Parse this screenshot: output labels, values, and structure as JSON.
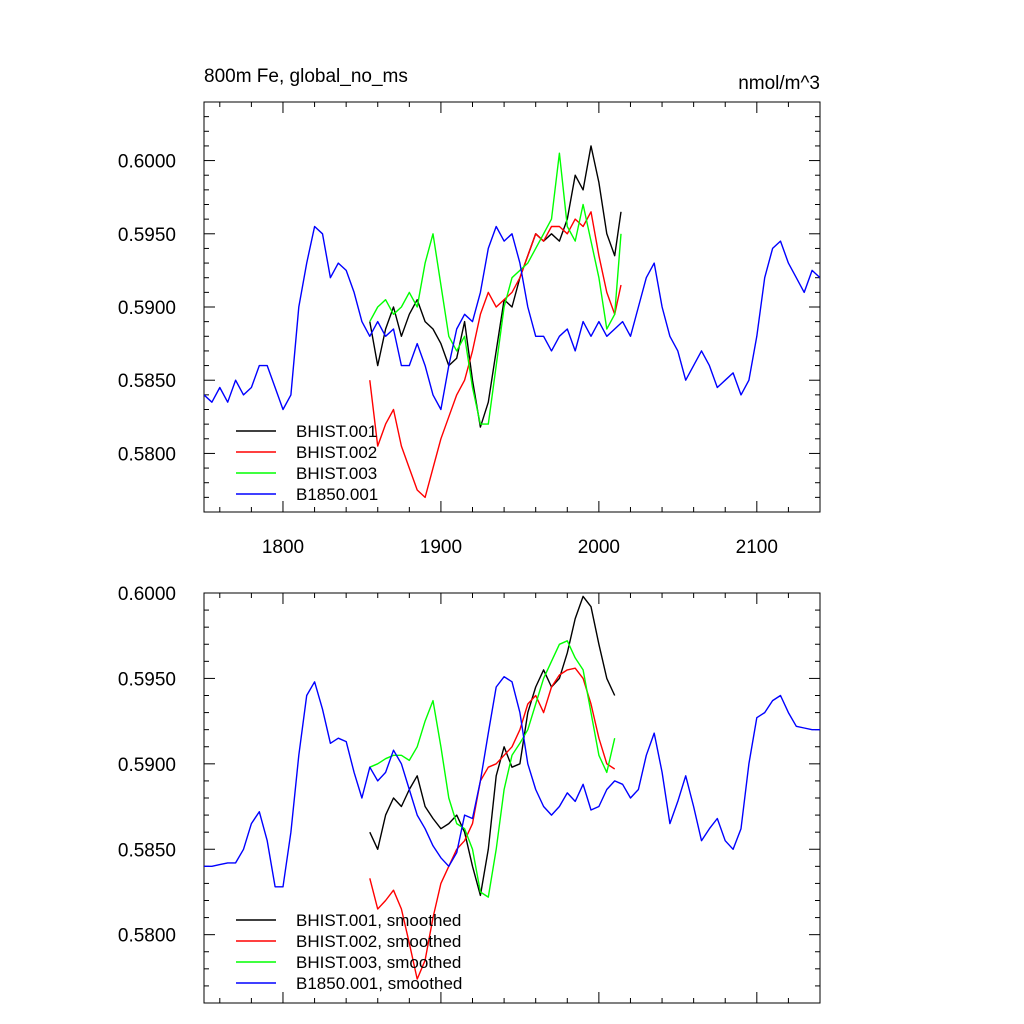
{
  "chart_data": [
    {
      "type": "line",
      "title": "800m Fe, global_no_ms",
      "units": "nmol/m^3",
      "xlim": [
        1750,
        2140
      ],
      "ylim": [
        0.576,
        0.604
      ],
      "x_ticks": [
        1800,
        1900,
        2000,
        2100
      ],
      "y_ticks": [
        0.58,
        0.585,
        0.59,
        0.595,
        0.6
      ],
      "y_tick_labels": [
        "0.5800",
        "0.5850",
        "0.5900",
        "0.5950",
        "0.6000"
      ],
      "x_tick_labels": [
        "1800",
        "1900",
        "2000",
        "2100"
      ],
      "legend_position": "bottom-left",
      "series": [
        {
          "name": "BHIST.001",
          "color": "#000000",
          "x": [
            1855,
            1860,
            1865,
            1870,
            1875,
            1880,
            1885,
            1890,
            1895,
            1900,
            1905,
            1910,
            1915,
            1920,
            1925,
            1930,
            1935,
            1940,
            1945,
            1950,
            1955,
            1960,
            1965,
            1970,
            1975,
            1980,
            1985,
            1990,
            1995,
            2000,
            2005,
            2010,
            2014
          ],
          "y": [
            0.589,
            0.586,
            0.5885,
            0.59,
            0.588,
            0.5895,
            0.5905,
            0.589,
            0.5885,
            0.5875,
            0.586,
            0.5865,
            0.589,
            0.585,
            0.5818,
            0.5835,
            0.587,
            0.5905,
            0.59,
            0.592,
            0.5935,
            0.595,
            0.5945,
            0.595,
            0.5945,
            0.596,
            0.599,
            0.598,
            0.601,
            0.5985,
            0.595,
            0.5935,
            0.5965
          ]
        },
        {
          "name": "BHIST.002",
          "color": "#ff0000",
          "x": [
            1855,
            1860,
            1865,
            1870,
            1875,
            1880,
            1885,
            1890,
            1895,
            1900,
            1905,
            1910,
            1915,
            1920,
            1925,
            1930,
            1935,
            1940,
            1945,
            1950,
            1955,
            1960,
            1965,
            1970,
            1975,
            1980,
            1985,
            1990,
            1995,
            2000,
            2005,
            2010,
            2014
          ],
          "y": [
            0.585,
            0.5805,
            0.582,
            0.583,
            0.5805,
            0.579,
            0.5775,
            0.577,
            0.579,
            0.581,
            0.5825,
            0.584,
            0.585,
            0.587,
            0.5895,
            0.591,
            0.59,
            0.5905,
            0.591,
            0.592,
            0.5935,
            0.595,
            0.5945,
            0.5955,
            0.5955,
            0.595,
            0.596,
            0.5955,
            0.5965,
            0.5935,
            0.591,
            0.5895,
            0.5915
          ]
        },
        {
          "name": "BHIST.003",
          "color": "#00ff00",
          "x": [
            1855,
            1860,
            1865,
            1870,
            1875,
            1880,
            1885,
            1890,
            1895,
            1900,
            1905,
            1910,
            1915,
            1920,
            1925,
            1930,
            1935,
            1940,
            1945,
            1950,
            1955,
            1960,
            1965,
            1970,
            1975,
            1980,
            1985,
            1990,
            1995,
            2000,
            2005,
            2010,
            2014
          ],
          "y": [
            0.589,
            0.59,
            0.5905,
            0.5895,
            0.59,
            0.591,
            0.59,
            0.593,
            0.595,
            0.5915,
            0.588,
            0.587,
            0.588,
            0.5845,
            0.582,
            0.582,
            0.586,
            0.59,
            0.592,
            0.5925,
            0.593,
            0.594,
            0.595,
            0.596,
            0.6005,
            0.5955,
            0.5945,
            0.597,
            0.5945,
            0.592,
            0.5885,
            0.5895,
            0.595
          ]
        },
        {
          "name": "B1850.001",
          "color": "#0000ff",
          "x": [
            1750,
            1755,
            1760,
            1765,
            1770,
            1775,
            1780,
            1785,
            1790,
            1795,
            1800,
            1805,
            1810,
            1815,
            1820,
            1825,
            1830,
            1835,
            1840,
            1845,
            1850,
            1855,
            1860,
            1865,
            1870,
            1875,
            1880,
            1885,
            1890,
            1895,
            1900,
            1905,
            1910,
            1915,
            1920,
            1925,
            1930,
            1935,
            1940,
            1945,
            1950,
            1955,
            1960,
            1965,
            1970,
            1975,
            1980,
            1985,
            1990,
            1995,
            2000,
            2005,
            2010,
            2015,
            2020,
            2025,
            2030,
            2035,
            2040,
            2045,
            2050,
            2055,
            2060,
            2065,
            2070,
            2075,
            2080,
            2085,
            2090,
            2095,
            2100,
            2105,
            2110,
            2115,
            2120,
            2125,
            2130,
            2135,
            2140
          ],
          "y": [
            0.584,
            0.5835,
            0.5845,
            0.5835,
            0.585,
            0.584,
            0.5845,
            0.586,
            0.586,
            0.5845,
            0.583,
            0.584,
            0.59,
            0.593,
            0.5955,
            0.595,
            0.592,
            0.593,
            0.5925,
            0.591,
            0.589,
            0.588,
            0.589,
            0.588,
            0.5885,
            0.586,
            0.586,
            0.5875,
            0.586,
            0.584,
            0.583,
            0.586,
            0.5885,
            0.5895,
            0.589,
            0.591,
            0.594,
            0.5955,
            0.5945,
            0.595,
            0.593,
            0.59,
            0.588,
            0.588,
            0.587,
            0.588,
            0.5885,
            0.587,
            0.589,
            0.588,
            0.589,
            0.588,
            0.5885,
            0.589,
            0.588,
            0.59,
            0.592,
            0.593,
            0.59,
            0.588,
            0.587,
            0.585,
            0.586,
            0.587,
            0.586,
            0.5845,
            0.585,
            0.5855,
            0.584,
            0.585,
            0.588,
            0.592,
            0.594,
            0.5945,
            0.593,
            0.592,
            0.591,
            0.5925,
            0.592
          ]
        }
      ]
    },
    {
      "type": "line",
      "xlim": [
        1750,
        2140
      ],
      "ylim": [
        0.576,
        0.6
      ],
      "x_ticks": [
        1800,
        1900,
        2000,
        2100
      ],
      "y_ticks": [
        0.58,
        0.585,
        0.59,
        0.595,
        0.6
      ],
      "y_tick_labels": [
        "0.5800",
        "0.5850",
        "0.5900",
        "0.5950",
        "0.6000"
      ],
      "legend_position": "bottom-left",
      "series": [
        {
          "name": "BHIST.001, smoothed",
          "color": "#000000",
          "x": [
            1855,
            1860,
            1865,
            1870,
            1875,
            1880,
            1885,
            1890,
            1895,
            1900,
            1905,
            1910,
            1915,
            1920,
            1925,
            1930,
            1935,
            1940,
            1945,
            1950,
            1955,
            1960,
            1965,
            1970,
            1975,
            1980,
            1985,
            1990,
            1995,
            2000,
            2005,
            2010
          ],
          "y": [
            0.586,
            0.585,
            0.587,
            0.588,
            0.5875,
            0.5885,
            0.5893,
            0.5875,
            0.5868,
            0.5862,
            0.5865,
            0.587,
            0.586,
            0.584,
            0.5823,
            0.585,
            0.5893,
            0.591,
            0.5898,
            0.59,
            0.593,
            0.5945,
            0.5955,
            0.5945,
            0.595,
            0.5965,
            0.5985,
            0.5998,
            0.5992,
            0.597,
            0.595,
            0.594
          ]
        },
        {
          "name": "BHIST.002, smoothed",
          "color": "#ff0000",
          "x": [
            1855,
            1860,
            1865,
            1870,
            1875,
            1880,
            1885,
            1890,
            1895,
            1900,
            1905,
            1910,
            1915,
            1920,
            1925,
            1930,
            1935,
            1940,
            1945,
            1950,
            1955,
            1960,
            1965,
            1970,
            1975,
            1980,
            1985,
            1990,
            1995,
            2000,
            2005,
            2010
          ],
          "y": [
            0.5833,
            0.5815,
            0.582,
            0.5826,
            0.5815,
            0.5795,
            0.5774,
            0.5785,
            0.581,
            0.583,
            0.584,
            0.585,
            0.5855,
            0.5865,
            0.589,
            0.5898,
            0.59,
            0.5905,
            0.591,
            0.592,
            0.5935,
            0.594,
            0.593,
            0.5945,
            0.5952,
            0.5955,
            0.5956,
            0.595,
            0.5935,
            0.5915,
            0.59,
            0.5897
          ]
        },
        {
          "name": "BHIST.003, smoothed",
          "color": "#00ff00",
          "x": [
            1855,
            1860,
            1865,
            1870,
            1875,
            1880,
            1885,
            1890,
            1895,
            1900,
            1905,
            1910,
            1915,
            1920,
            1925,
            1930,
            1935,
            1940,
            1945,
            1950,
            1955,
            1960,
            1965,
            1970,
            1975,
            1980,
            1985,
            1990,
            1995,
            2000,
            2005,
            2010
          ],
          "y": [
            0.5898,
            0.59,
            0.5903,
            0.5905,
            0.5905,
            0.5902,
            0.591,
            0.5925,
            0.5937,
            0.591,
            0.588,
            0.5865,
            0.5862,
            0.585,
            0.5825,
            0.5822,
            0.585,
            0.5885,
            0.5905,
            0.5912,
            0.592,
            0.5935,
            0.595,
            0.596,
            0.597,
            0.5972,
            0.5962,
            0.5955,
            0.593,
            0.5905,
            0.5895,
            0.5915
          ]
        },
        {
          "name": "B1850.001, smoothed",
          "color": "#0000ff",
          "x": [
            1750,
            1755,
            1760,
            1765,
            1770,
            1775,
            1780,
            1785,
            1790,
            1795,
            1800,
            1805,
            1810,
            1815,
            1820,
            1825,
            1830,
            1835,
            1840,
            1845,
            1850,
            1855,
            1860,
            1865,
            1870,
            1875,
            1880,
            1885,
            1890,
            1895,
            1900,
            1905,
            1910,
            1915,
            1920,
            1925,
            1930,
            1935,
            1940,
            1945,
            1950,
            1955,
            1960,
            1965,
            1970,
            1975,
            1980,
            1985,
            1990,
            1995,
            2000,
            2005,
            2010,
            2015,
            2020,
            2025,
            2030,
            2035,
            2040,
            2045,
            2050,
            2055,
            2060,
            2065,
            2070,
            2075,
            2080,
            2085,
            2090,
            2095,
            2100,
            2105,
            2110,
            2115,
            2120,
            2125,
            2130,
            2135,
            2140
          ],
          "y": [
            0.584,
            0.584,
            0.5841,
            0.5842,
            0.5842,
            0.585,
            0.5865,
            0.5872,
            0.5855,
            0.5828,
            0.5828,
            0.586,
            0.5905,
            0.594,
            0.5948,
            0.5932,
            0.5912,
            0.5915,
            0.5913,
            0.5895,
            0.588,
            0.5898,
            0.589,
            0.5895,
            0.5908,
            0.59,
            0.5885,
            0.587,
            0.5862,
            0.5852,
            0.5845,
            0.584,
            0.5848,
            0.587,
            0.5868,
            0.589,
            0.5918,
            0.5945,
            0.5951,
            0.5948,
            0.593,
            0.59,
            0.5885,
            0.5875,
            0.587,
            0.5875,
            0.5883,
            0.5878,
            0.5888,
            0.5873,
            0.5875,
            0.5885,
            0.589,
            0.5888,
            0.588,
            0.5885,
            0.5905,
            0.5918,
            0.5895,
            0.5865,
            0.5878,
            0.5893,
            0.5875,
            0.5855,
            0.5862,
            0.5868,
            0.5855,
            0.585,
            0.5862,
            0.59,
            0.5927,
            0.593,
            0.5937,
            0.594,
            0.593,
            0.5922,
            0.5921,
            0.592,
            0.592
          ]
        }
      ]
    }
  ]
}
